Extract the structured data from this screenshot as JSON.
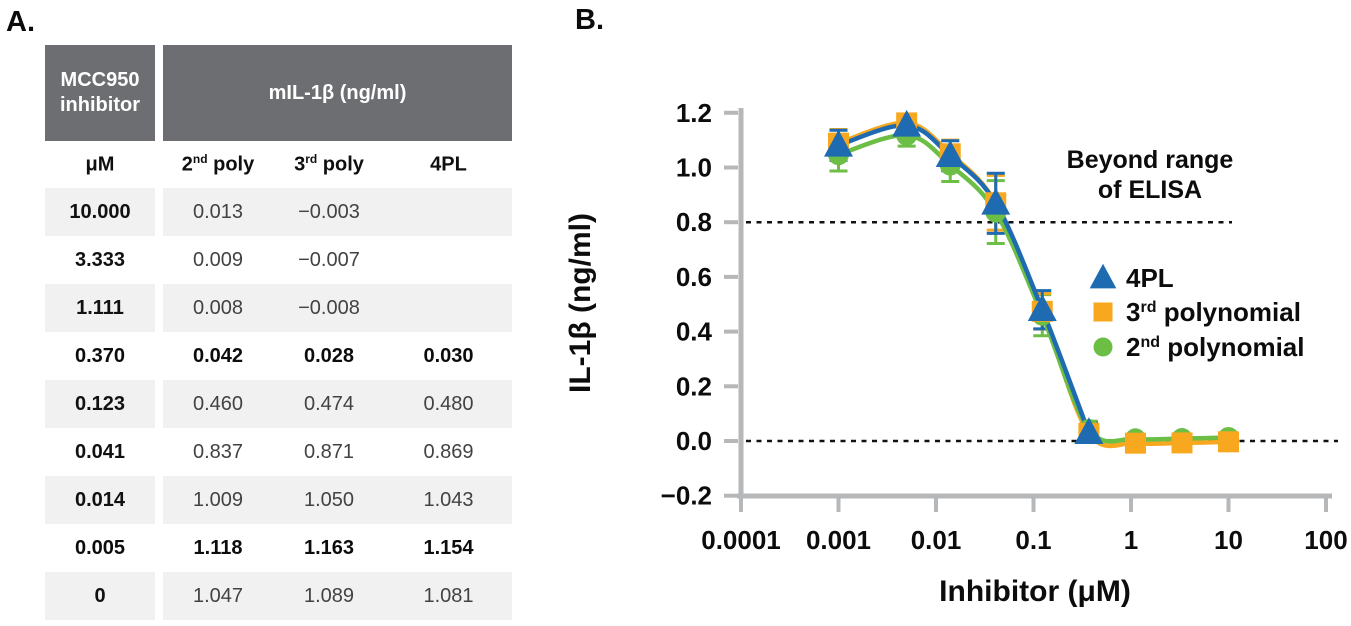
{
  "panelA": {
    "label": "A.",
    "table": {
      "header_col1": "MCC950\ninhibitor",
      "header_span": "mIL-1β (ng/ml)",
      "header_bg": "#6d6e71",
      "row_shade": "#f1f1f2",
      "subheader": [
        {
          "pre": "μM",
          "sup": "",
          "post": ""
        },
        {
          "pre": "2",
          "sup": "nd",
          "post": " poly"
        },
        {
          "pre": "3",
          "sup": "rd",
          "post": " poly"
        },
        {
          "pre": "4PL",
          "sup": "",
          "post": ""
        }
      ],
      "rows": [
        {
          "um": "10.000",
          "p2": "0.013",
          "p3": "−0.003",
          "p4": "",
          "bold": false,
          "shade": true
        },
        {
          "um": "3.333",
          "p2": "0.009",
          "p3": "−0.007",
          "p4": "",
          "bold": false,
          "shade": false
        },
        {
          "um": "1.111",
          "p2": "0.008",
          "p3": "−0.008",
          "p4": "",
          "bold": false,
          "shade": true
        },
        {
          "um": "0.370",
          "p2": "0.042",
          "p3": "0.028",
          "p4": "0.030",
          "bold": true,
          "shade": false
        },
        {
          "um": "0.123",
          "p2": "0.460",
          "p3": "0.474",
          "p4": "0.480",
          "bold": false,
          "shade": true
        },
        {
          "um": "0.041",
          "p2": "0.837",
          "p3": "0.871",
          "p4": "0.869",
          "bold": false,
          "shade": false
        },
        {
          "um": "0.014",
          "p2": "1.009",
          "p3": "1.050",
          "p4": "1.043",
          "bold": false,
          "shade": true
        },
        {
          "um": "0.005",
          "p2": "1.118",
          "p3": "1.163",
          "p4": "1.154",
          "bold": true,
          "shade": false
        },
        {
          "um": "0",
          "p2": "1.047",
          "p3": "1.089",
          "p4": "1.081",
          "bold": false,
          "shade": true
        }
      ]
    }
  },
  "panelB": {
    "label": "B."
  },
  "chart_data": {
    "type": "scatter",
    "xlabel": "Inhibitor (μM)",
    "ylabel": "IL-1β (ng/ml)",
    "x_scale": "log",
    "xlim": [
      0.0001,
      100
    ],
    "ylim": [
      -0.2,
      1.2
    ],
    "x_tick_values": [
      0.0001,
      0.001,
      0.01,
      0.1,
      1,
      10,
      100
    ],
    "x_tick_labels": [
      "0.0001",
      "0.001",
      "0.01",
      "0.1",
      "1",
      "10",
      "100"
    ],
    "y_tick_values": [
      1.2,
      1.0,
      0.8,
      0.6,
      0.4,
      0.2,
      0.0,
      -0.2
    ],
    "y_tick_labels": [
      "1.2",
      "1.0",
      "0.8",
      "0.6",
      "0.4",
      "0.2",
      "0.0",
      "−0.2"
    ],
    "grid": false,
    "legend_position": "right-middle",
    "annotation": [
      "Beyond range",
      "of ELISA"
    ],
    "ref_lines": [
      0.8,
      0.0
    ],
    "axis_color": "#b5b7b9",
    "x_um": [
      0,
      0.005,
      0.014,
      0.041,
      0.123,
      0.37,
      1.111,
      3.333,
      10
    ],
    "zero_control_plotted_at": 0.001,
    "series": [
      {
        "name": "2nd polynomial",
        "name_parts": {
          "pre": "2",
          "sup": "nd",
          "post": " polynomial"
        },
        "marker": "circle",
        "color": "#6cbe45",
        "values": [
          1.047,
          1.118,
          1.009,
          0.837,
          0.46,
          0.042,
          0.008,
          0.009,
          0.013
        ],
        "err": [
          0.06,
          0.04,
          0.06,
          0.115,
          0.075,
          0.03,
          null,
          null,
          null
        ]
      },
      {
        "name": "3rd polynomial",
        "name_parts": {
          "pre": "3",
          "sup": "rd",
          "post": " polynomial"
        },
        "marker": "square",
        "color": "#f8a81e",
        "values": [
          1.089,
          1.163,
          1.05,
          0.871,
          0.474,
          0.028,
          -0.008,
          -0.007,
          -0.003
        ],
        "err": [
          0.05,
          0.03,
          0.05,
          0.1,
          0.065,
          0.03,
          null,
          null,
          null
        ]
      },
      {
        "name": "4PL",
        "name_parts": {
          "pre": "4PL",
          "sup": "",
          "post": ""
        },
        "marker": "triangle",
        "color": "#1e6bb2",
        "values": [
          1.081,
          1.154,
          1.043,
          0.869,
          0.48,
          0.03,
          null,
          null,
          null
        ],
        "err": [
          0.055,
          0.035,
          0.055,
          0.11,
          0.07,
          0.035,
          null,
          null,
          null
        ]
      }
    ],
    "legend_order": [
      "4PL",
      "3rd polynomial",
      "2nd polynomial"
    ]
  }
}
